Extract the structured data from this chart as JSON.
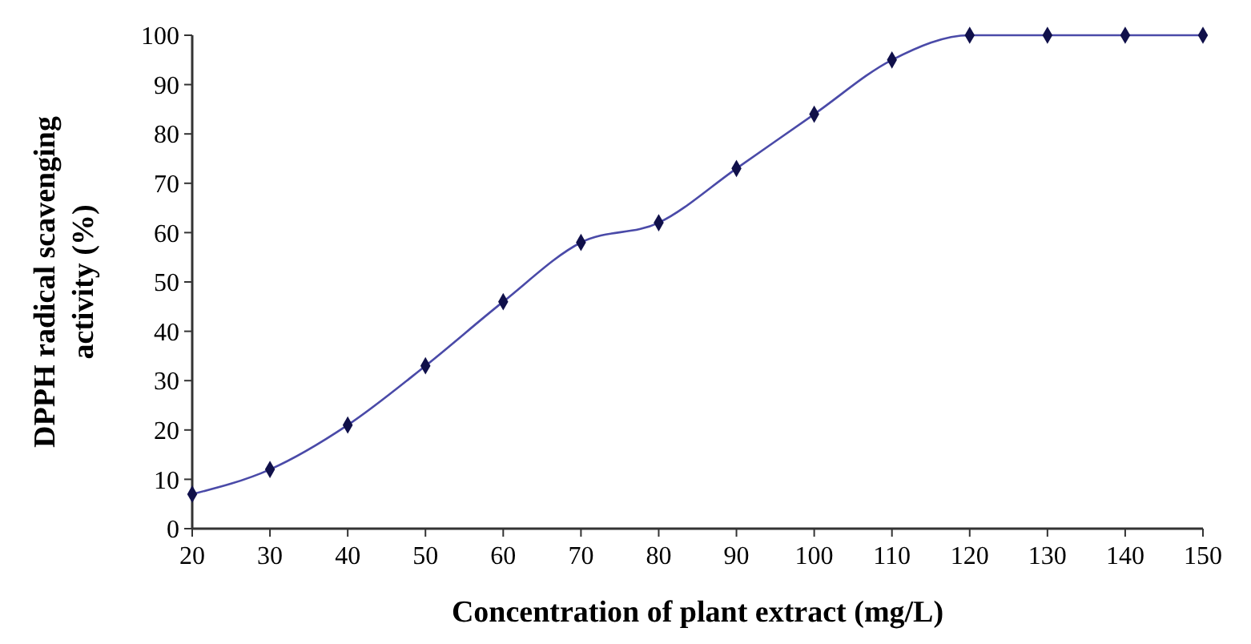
{
  "chart_data": {
    "type": "line",
    "xlabel": "Concentration of plant extract (mg/L)",
    "ylabel": "DPPH radical scavenging activity (%)",
    "x": [
      20,
      30,
      40,
      50,
      60,
      70,
      80,
      90,
      100,
      110,
      120,
      130,
      140,
      150
    ],
    "series": [
      {
        "color": "#4a4aa8",
        "values": [
          7,
          12,
          21,
          33,
          46,
          58,
          62,
          73,
          84,
          95,
          100,
          100,
          100,
          100
        ]
      }
    ],
    "xlim": [
      20,
      150
    ],
    "xticks": [
      20,
      30,
      40,
      50,
      60,
      70,
      80,
      90,
      100,
      110,
      120,
      130,
      140,
      150
    ],
    "ylim": [
      0,
      100
    ],
    "yticks": [
      0,
      10,
      20,
      30,
      40,
      50,
      60,
      70,
      80,
      90,
      100
    ],
    "marker": "diamond"
  }
}
